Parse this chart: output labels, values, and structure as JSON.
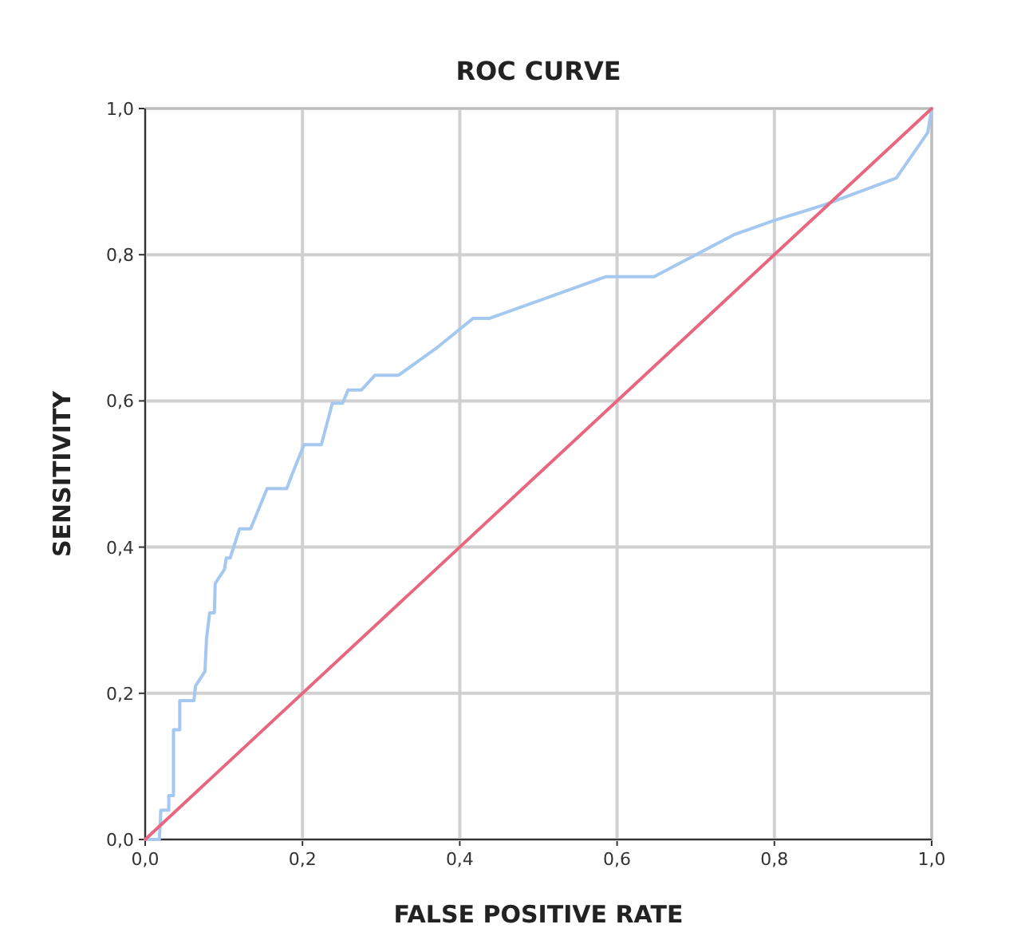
{
  "chart_data": {
    "type": "line",
    "title": "ROC CURVE",
    "xlabel": "FALSE POSITIVE RATE",
    "ylabel": "SENSITIVITY",
    "xlim": [
      0,
      1
    ],
    "ylim": [
      0,
      1
    ],
    "xticks": [
      {
        "value": 0,
        "label": "0,0"
      },
      {
        "value": 0.2,
        "label": "0,2"
      },
      {
        "value": 0.4,
        "label": "0,4"
      },
      {
        "value": 0.6,
        "label": "0,6"
      },
      {
        "value": 0.8,
        "label": "0,8"
      },
      {
        "value": 1,
        "label": "1,0"
      }
    ],
    "yticks": [
      {
        "value": 0,
        "label": "0,0"
      },
      {
        "value": 0.2,
        "label": "0,2"
      },
      {
        "value": 0.4,
        "label": "0,4"
      },
      {
        "value": 0.6,
        "label": "0,6"
      },
      {
        "value": 0.8,
        "label": "0,8"
      },
      {
        "value": 1,
        "label": "1,0"
      }
    ],
    "grid": true,
    "marker": "none",
    "line_style": "solid",
    "series": [
      {
        "color": "#a5c8f0",
        "x": [
          0,
          0.018,
          0.02,
          0.025,
          0.03,
          0.03,
          0.036,
          0.036,
          0.044,
          0.044,
          0.062,
          0.064,
          0.076,
          0.078,
          0.082,
          0.088,
          0.089,
          0.101,
          0.103,
          0.108,
          0.12,
          0.134,
          0.155,
          0.18,
          0.187,
          0.202,
          0.224,
          0.238,
          0.251,
          0.258,
          0.275,
          0.292,
          0.322,
          0.37,
          0.417,
          0.438,
          0.586,
          0.647,
          0.748,
          0.8,
          0.863,
          0.955,
          0.995,
          1
        ],
        "values": [
          0,
          0,
          0.04,
          0.04,
          0.04,
          0.06,
          0.06,
          0.15,
          0.15,
          0.19,
          0.19,
          0.21,
          0.23,
          0.275,
          0.31,
          0.31,
          0.35,
          0.37,
          0.385,
          0.385,
          0.425,
          0.425,
          0.48,
          0.48,
          0.5,
          0.54,
          0.54,
          0.597,
          0.597,
          0.615,
          0.615,
          0.635,
          0.635,
          0.672,
          0.713,
          0.713,
          0.77,
          0.77,
          0.827,
          0.847,
          0.868,
          0.905,
          0.967,
          1
        ]
      },
      {
        "color": "#e8677f",
        "x": [
          0,
          1
        ],
        "values": [
          0,
          1
        ]
      }
    ]
  }
}
